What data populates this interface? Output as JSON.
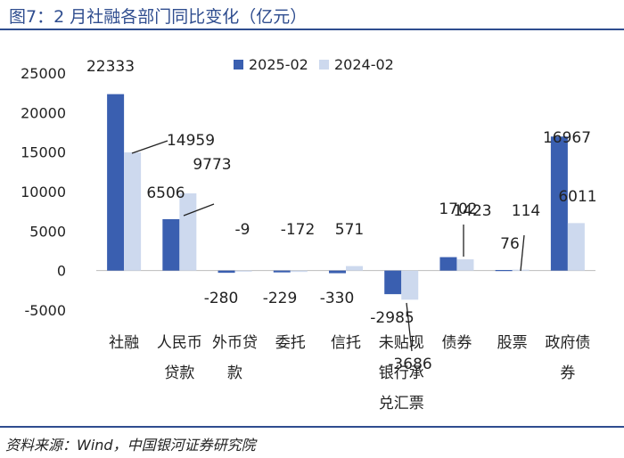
{
  "figure": {
    "title": "图7：2 月社融各部门同比变化（亿元）",
    "source": "资料来源：Wind，中国银河证券研究院"
  },
  "colors": {
    "series_2025": "#3a5fb0",
    "series_2024": "#cdd9ee"
  },
  "chart_data": {
    "type": "bar",
    "categories": [
      [
        "社融"
      ],
      [
        "人民币",
        "贷款"
      ],
      [
        "外币贷",
        "款"
      ],
      [
        "委托"
      ],
      [
        "信托"
      ],
      [
        "未贴现",
        "银行承",
        "兑汇票"
      ],
      [
        "债券"
      ],
      [
        "股票"
      ],
      [
        "政府债",
        "券"
      ]
    ],
    "series": [
      {
        "name": "2025-02",
        "values": [
          22333,
          6506,
          -280,
          -229,
          -330,
          -2985,
          1702,
          76,
          16967
        ]
      },
      {
        "name": "2024-02",
        "values": [
          14959,
          9773,
          -9,
          -172,
          571,
          -3686,
          1423,
          114,
          6011
        ]
      }
    ],
    "ylim": [
      -5000,
      25000
    ],
    "yticks": [
      -5000,
      0,
      5000,
      10000,
      15000,
      20000,
      25000
    ],
    "legend": "top-center",
    "grid": false
  }
}
